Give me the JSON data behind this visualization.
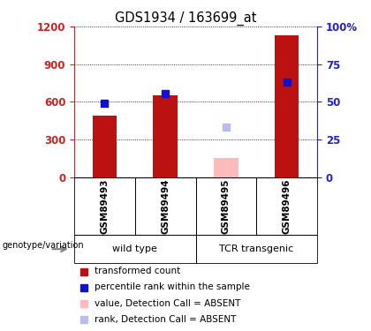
{
  "title": "GDS1934 / 163699_at",
  "samples": [
    "GSM89493",
    "GSM89494",
    "GSM89495",
    "GSM89496"
  ],
  "bar_values": [
    490,
    650,
    150,
    1130
  ],
  "bar_colors": [
    "#bb1111",
    "#bb1111",
    "#ffbbbb",
    "#bb1111"
  ],
  "rank_values": [
    590,
    665,
    400,
    760
  ],
  "rank_colors": [
    "#1111cc",
    "#1111cc",
    "#bbbbee",
    "#1111cc"
  ],
  "absent_flags": [
    false,
    false,
    true,
    false
  ],
  "ylim_left": [
    0,
    1200
  ],
  "ylim_right": [
    0,
    100
  ],
  "yticks_left": [
    0,
    300,
    600,
    900,
    1200
  ],
  "yticks_right": [
    0,
    25,
    50,
    75,
    100
  ],
  "ytick_labels_left": [
    "0",
    "300",
    "600",
    "900",
    "1200"
  ],
  "ytick_labels_right": [
    "0",
    "25",
    "50",
    "75",
    "100%"
  ],
  "left_axis_color": "#cc2222",
  "right_axis_color": "#2222cc",
  "group_labels": [
    "wild type",
    "TCR transgenic"
  ],
  "group_ranges": [
    [
      0,
      2
    ],
    [
      2,
      4
    ]
  ],
  "group_colors": [
    "#aaffaa",
    "#66ee66"
  ],
  "legend_items": [
    {
      "label": "transformed count",
      "color": "#bb1111"
    },
    {
      "label": "percentile rank within the sample",
      "color": "#1111cc"
    },
    {
      "label": "value, Detection Call = ABSENT",
      "color": "#ffbbbb"
    },
    {
      "label": "rank, Detection Call = ABSENT",
      "color": "#bbbbee"
    }
  ],
  "sample_bg": "#cccccc",
  "plot_bg": "#ffffff",
  "bar_width": 0.4,
  "annotation_label": "genotype/variation"
}
